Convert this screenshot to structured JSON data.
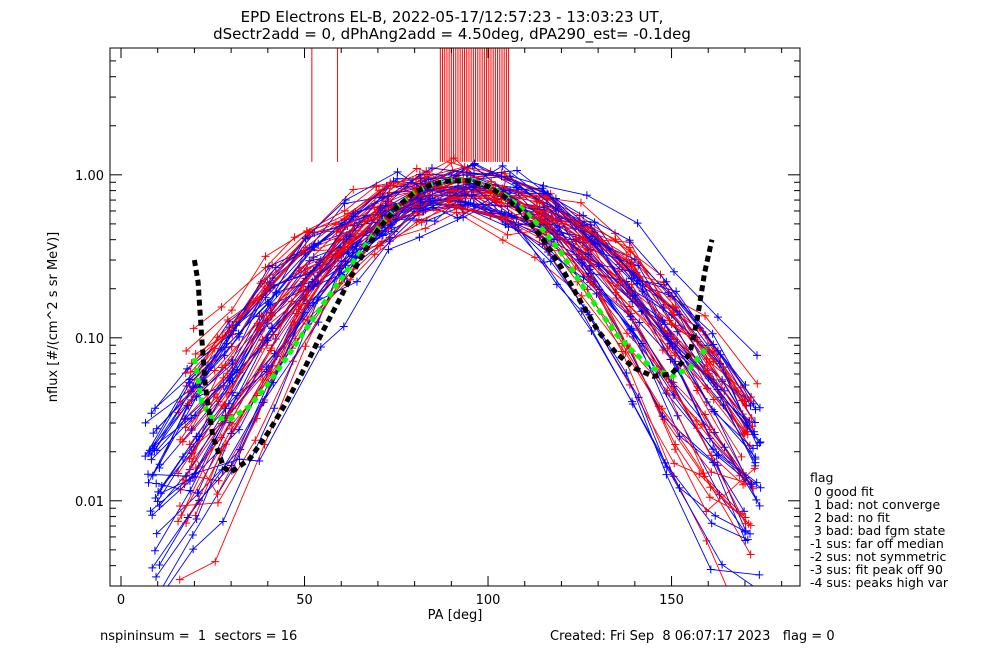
{
  "chart_data": {
    "type": "scatter",
    "title": "EPD Electrons EL-B, 2022-05-17/12:57:23 - 13:03:23 UT,",
    "subtitle": "dSectr2add = 0, dPhAng2add = 4.50deg, dPA290_est=  -0.1deg",
    "xlabel": "PA [deg]",
    "ylabel": "nflux [#/(cm^2 s sr MeV)]",
    "xlim": [
      -3,
      185
    ],
    "ylim": [
      0.003,
      6.0
    ],
    "yscale": "log",
    "x_ticks": [
      0,
      50,
      100,
      150
    ],
    "x_tick_labels": [
      "0",
      "50",
      "100",
      "150"
    ],
    "y_ticks": [
      0.01,
      0.1,
      1.0
    ],
    "y_tick_labels": [
      "0.01",
      "0.10",
      "1.00"
    ],
    "grid": false,
    "colors": {
      "red": "#ff0000",
      "blue": "#0000ff",
      "green": "#00ff00",
      "black": "#000000"
    },
    "series": [
      {
        "color": "#00ff00",
        "style": "dashed-thick",
        "x": [
          20,
          22,
          25,
          30,
          35,
          40,
          45,
          50,
          55,
          60,
          65,
          70,
          75,
          80,
          85,
          90,
          95,
          100,
          105,
          110,
          115,
          120,
          125,
          130,
          135,
          140,
          145,
          150,
          155,
          160
        ],
        "y": [
          0.075,
          0.04,
          0.032,
          0.032,
          0.038,
          0.052,
          0.075,
          0.11,
          0.16,
          0.23,
          0.33,
          0.47,
          0.63,
          0.78,
          0.88,
          0.93,
          0.93,
          0.86,
          0.74,
          0.6,
          0.46,
          0.33,
          0.22,
          0.15,
          0.105,
          0.08,
          0.065,
          0.058,
          0.065,
          0.09
        ]
      },
      {
        "color": "#000000",
        "style": "dashed-thick",
        "x": [
          20,
          21,
          22,
          23,
          25,
          28,
          30,
          35,
          40,
          45,
          50,
          55,
          60,
          65,
          70,
          75,
          80,
          85,
          90,
          95,
          100,
          105,
          110,
          115,
          120,
          125,
          130,
          135,
          140,
          145,
          150,
          155,
          157,
          159,
          161
        ],
        "y": [
          0.3,
          0.22,
          0.1,
          0.05,
          0.025,
          0.016,
          0.015,
          0.018,
          0.026,
          0.04,
          0.065,
          0.11,
          0.18,
          0.3,
          0.46,
          0.63,
          0.78,
          0.88,
          0.92,
          0.92,
          0.85,
          0.72,
          0.56,
          0.4,
          0.27,
          0.17,
          0.11,
          0.08,
          0.065,
          0.058,
          0.06,
          0.08,
          0.13,
          0.25,
          0.4
        ]
      }
    ]
  },
  "legend": {
    "title": "flag",
    "items": [
      " 0 good fit",
      " 1 bad: not converge",
      " 2 bad: no fit",
      " 3 bad: bad fgm state",
      "-1 sus: far off median",
      "-2 sus: not symmetric",
      "-3 sus: fit peak off 90",
      "-4 sus: peaks high var"
    ]
  },
  "footer": {
    "left": "nspininsum =  1  sectors = 16",
    "right": "Created: Fri Sep  8 06:07:17 2023   flag = 0"
  }
}
